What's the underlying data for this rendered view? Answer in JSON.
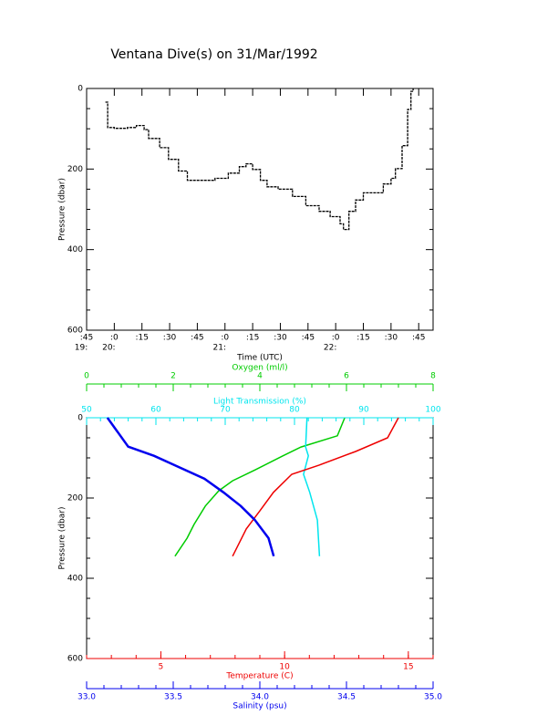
{
  "chart_data": [
    {
      "type": "line",
      "title": "Ventana Dive(s) on 31/Mar/1992",
      "xlabel": "Time (UTC)",
      "ylabel": "Pressure (dbar)",
      "xlim": [
        19.75,
        22.88
      ],
      "ylim": [
        0,
        600
      ],
      "yreverse": true,
      "xticks": [
        {
          "value": 19.75,
          "label": ":45",
          "hour_label": "19:"
        },
        {
          "value": 20.0,
          "label": ":0",
          "hour_label": "20:"
        },
        {
          "value": 20.25,
          "label": ":15"
        },
        {
          "value": 20.5,
          "label": ":30"
        },
        {
          "value": 20.75,
          "label": ":45"
        },
        {
          "value": 21.0,
          "label": ":0",
          "hour_label": "21:"
        },
        {
          "value": 21.25,
          "label": ":15"
        },
        {
          "value": 21.5,
          "label": ":30"
        },
        {
          "value": 21.75,
          "label": ":45"
        },
        {
          "value": 22.0,
          "label": ":0",
          "hour_label": "22:"
        },
        {
          "value": 22.25,
          "label": ":15"
        },
        {
          "value": 22.5,
          "label": ":30"
        },
        {
          "value": 22.75,
          "label": ":45"
        }
      ],
      "yticks": [
        0,
        200,
        400,
        600
      ],
      "color": "#000000",
      "x": [
        19.92,
        19.94,
        20.0,
        20.12,
        20.2,
        20.27,
        20.31,
        20.41,
        20.49,
        20.58,
        20.66,
        20.74,
        20.91,
        21.03,
        21.13,
        21.19,
        21.25,
        21.32,
        21.38,
        21.48,
        21.61,
        21.73,
        21.85,
        21.95,
        22.04,
        22.07,
        22.12,
        22.18,
        22.25,
        22.35,
        22.43,
        22.5,
        22.54,
        22.6,
        22.65,
        22.68,
        22.7
      ],
      "values": [
        34,
        97,
        99,
        97,
        92,
        102,
        124,
        147,
        176,
        205,
        228,
        228,
        223,
        210,
        194,
        187,
        201,
        228,
        244,
        250,
        268,
        291,
        305,
        318,
        336,
        350,
        305,
        277,
        259,
        259,
        237,
        223,
        199,
        142,
        52,
        7,
        0
      ]
    },
    {
      "type": "profile",
      "ylabel": "Pressure (dbar)",
      "ylim": [
        0,
        600
      ],
      "yreverse": true,
      "yticks": [
        0,
        200,
        400,
        600
      ],
      "series": [
        {
          "name": "Oxygen (ml/l)",
          "color": "#00cc00",
          "position": "top",
          "xlim": [
            0,
            8
          ],
          "xticks": [
            0,
            2,
            4,
            6,
            8
          ],
          "x": [
            5.96,
            5.79,
            4.95,
            4.53,
            3.89,
            3.37,
            3.05,
            2.74,
            2.48,
            2.32,
            2.04
          ],
          "y": [
            0,
            45,
            73,
            95,
            130,
            157,
            182,
            220,
            266,
            300,
            345
          ]
        },
        {
          "name": "Light Transmission (%)",
          "color": "#00e5ee",
          "position": "top",
          "xlim": [
            50,
            100
          ],
          "xticks": [
            50,
            60,
            70,
            80,
            90,
            100
          ],
          "x": [
            81.8,
            81.6,
            82.0,
            81.3,
            82.2,
            83.3,
            83.6
          ],
          "y": [
            0,
            73,
            95,
            141,
            186,
            255,
            345
          ]
        },
        {
          "name": "Temperature (C)",
          "color": "#ee0000",
          "position": "bottom",
          "xlim": [
            2,
            16
          ],
          "xticks": [
            5,
            10,
            15
          ],
          "x": [
            14.6,
            14.16,
            12.87,
            11.4,
            10.29,
            9.55,
            9.0,
            8.45,
            8.08,
            7.9
          ],
          "y": [
            0,
            50,
            84,
            118,
            141,
            186,
            232,
            277,
            323,
            345
          ]
        },
        {
          "name": "Salinity (psu)",
          "color": "#0000ee",
          "position": "bottom",
          "xlim": [
            33.0,
            35.0
          ],
          "xticks": [
            {
              "value": 33.0,
              "label": "33.0"
            },
            {
              "value": 33.5,
              "label": "33.5"
            },
            {
              "value": 34.0,
              "label": "34.0"
            },
            {
              "value": 34.5,
              "label": "34.5"
            },
            {
              "value": 35.0,
              "label": "35.0"
            }
          ],
          "x": [
            33.12,
            33.24,
            33.39,
            33.68,
            33.79,
            33.89,
            33.97,
            34.05,
            34.08
          ],
          "y": [
            0,
            72,
            95,
            152,
            186,
            220,
            254,
            300,
            345
          ]
        }
      ]
    }
  ]
}
